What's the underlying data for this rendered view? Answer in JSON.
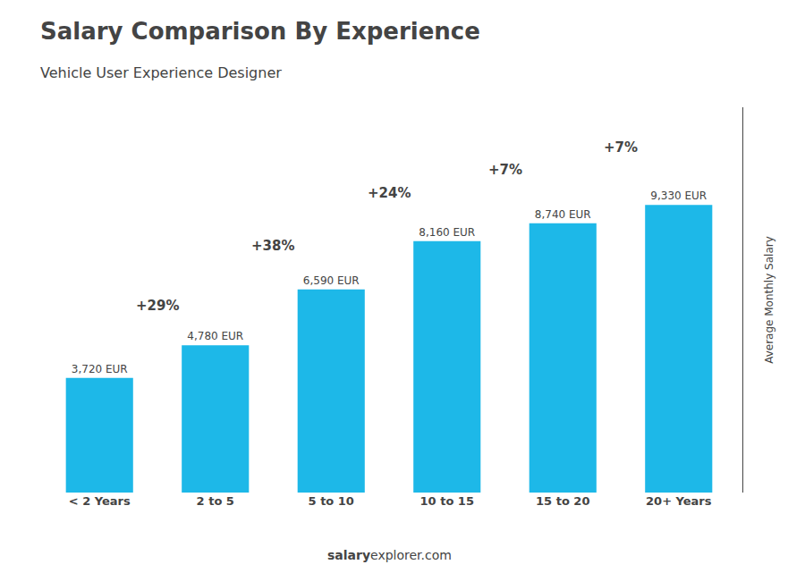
{
  "chart_data": {
    "type": "bar",
    "title": "Salary Comparison By Experience",
    "subtitle": "Vehicle User Experience Designer",
    "categories": [
      "< 2 Years",
      "2 to 5",
      "5 to 10",
      "10 to 15",
      "15 to 20",
      "20+ Years"
    ],
    "values": [
      3720,
      4780,
      6590,
      8160,
      8740,
      9330
    ],
    "value_labels": [
      "3,720 EUR",
      "4,780 EUR",
      "6,590 EUR",
      "8,160 EUR",
      "8,740 EUR",
      "9,330 EUR"
    ],
    "data_labels": true,
    "color": "#1DB8E8",
    "ylabel": "Average Monthly Salary",
    "ylim": [
      0,
      12500
    ],
    "tick_labels": "x",
    "grid": false,
    "pct_changes": [
      "+29%",
      "+38%",
      "+24%",
      "+7%",
      "+7%"
    ],
    "footer": [
      "salary",
      "explorer.com"
    ]
  }
}
